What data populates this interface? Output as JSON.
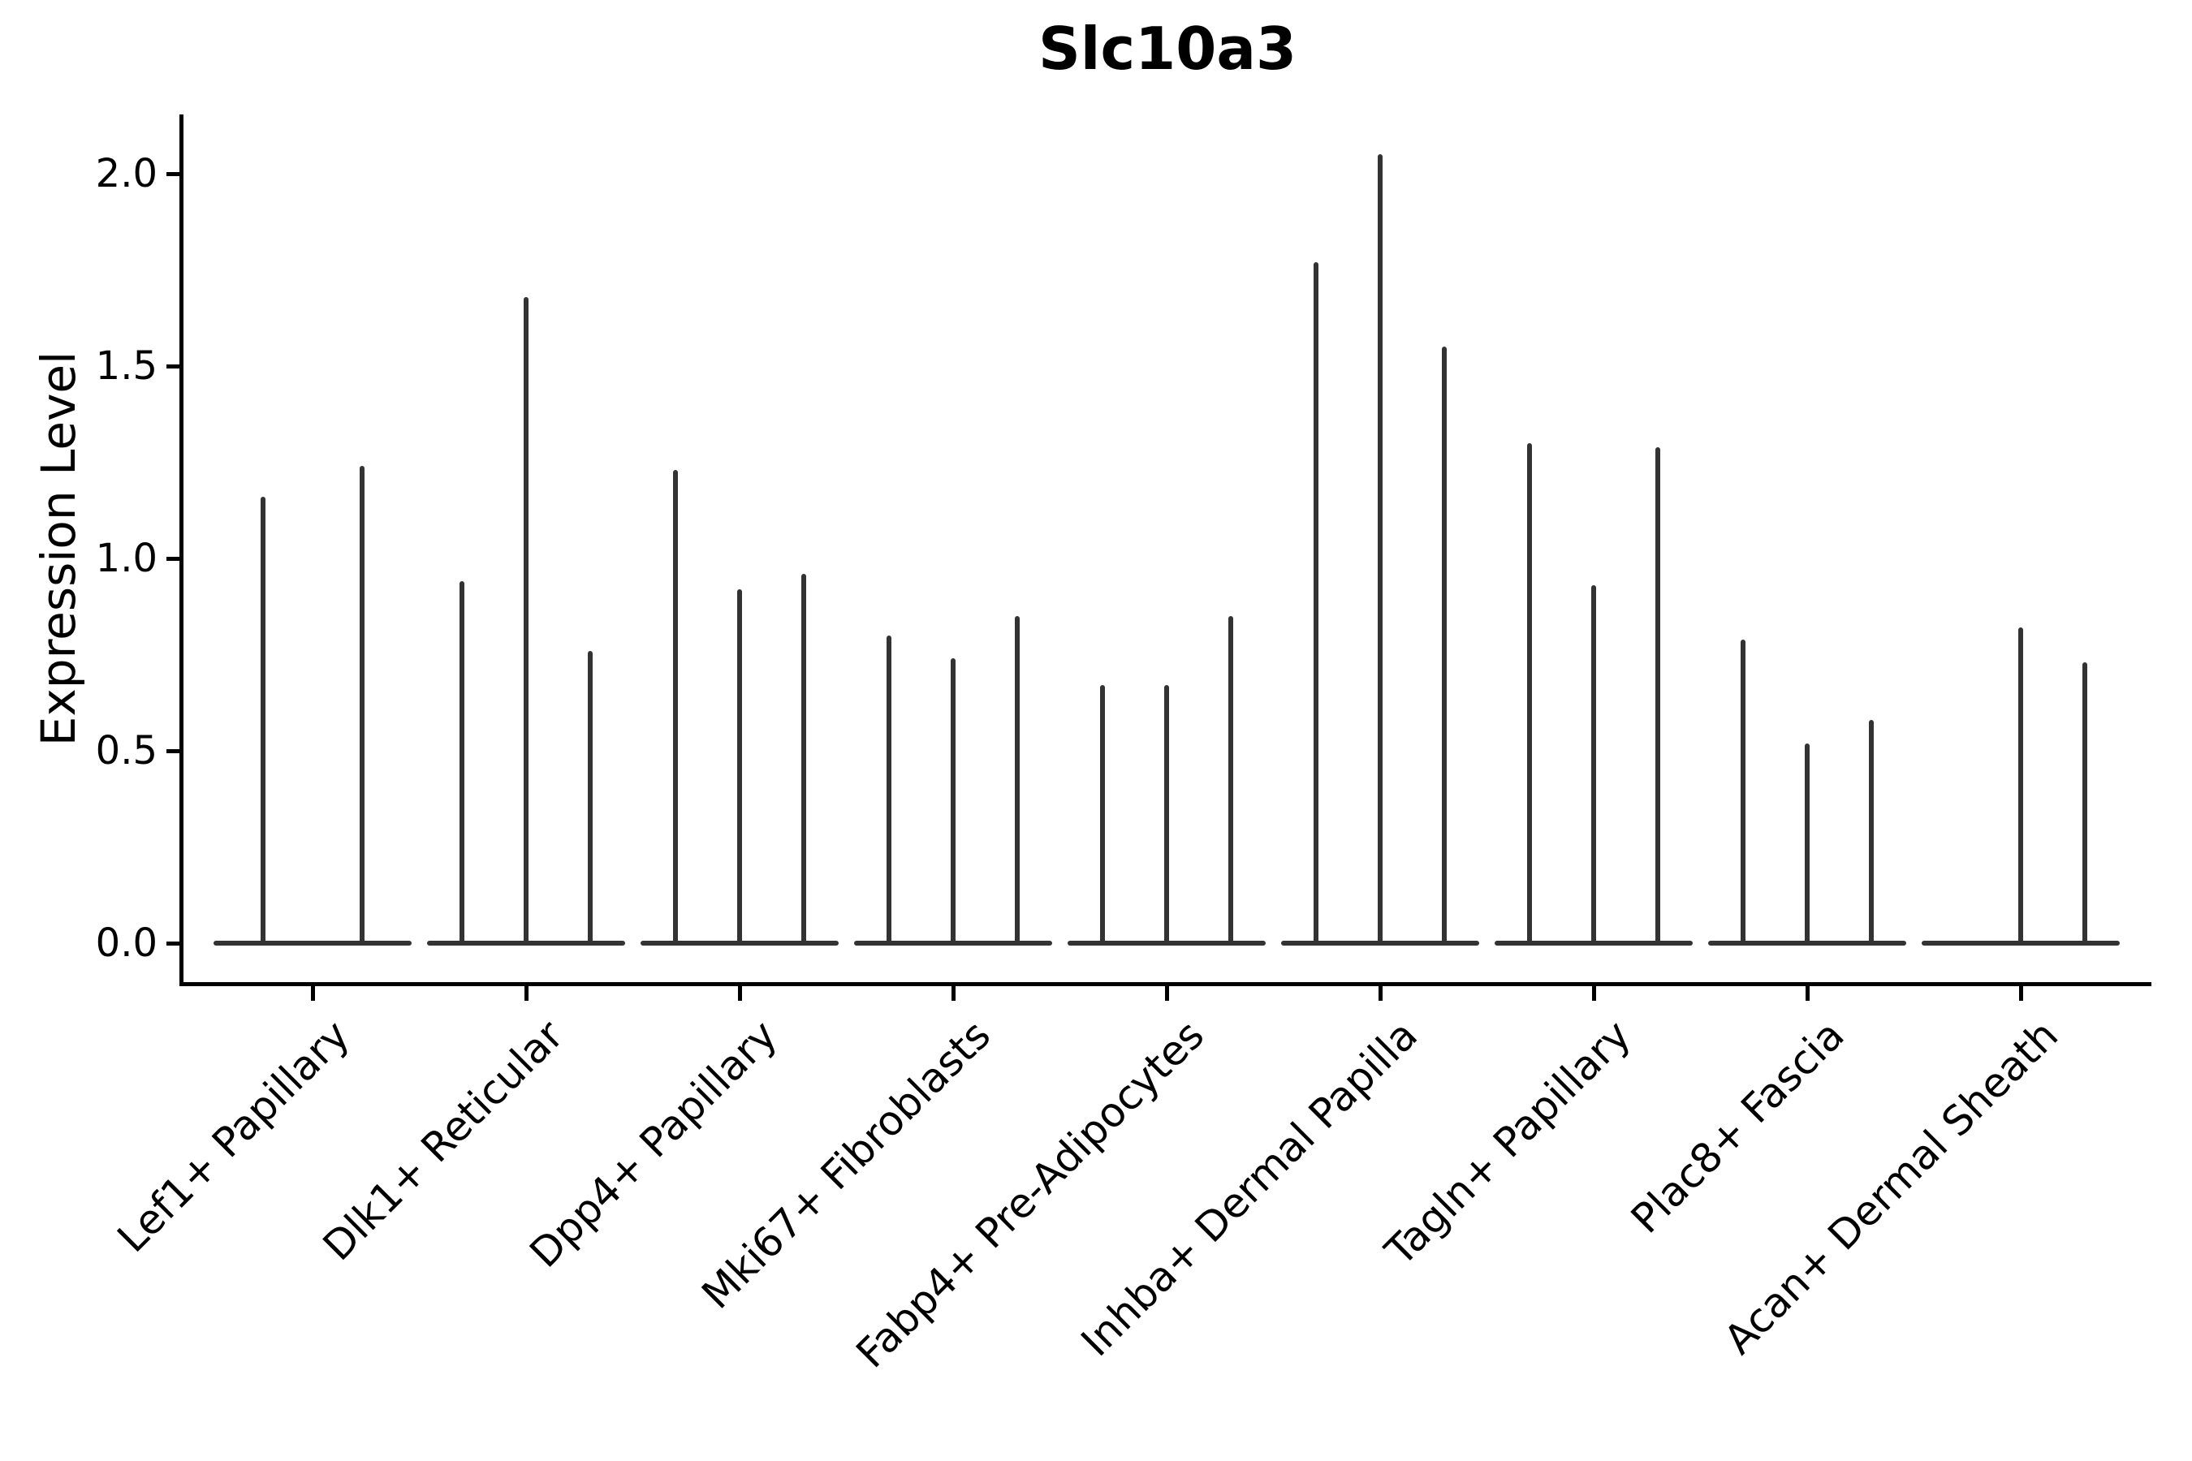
{
  "chart_data": {
    "type": "violin",
    "title": "Slc10a3",
    "xlabel": "",
    "ylabel": "Expression Level",
    "ylim": [
      -0.1,
      2.15
    ],
    "yticks": [
      0.0,
      0.5,
      1.0,
      1.5,
      2.0
    ],
    "grid": false,
    "legend": null,
    "violin_baseline_value": 0.0,
    "categories": [
      "Lef1+ Papillary",
      "Dlk1+ Reticular",
      "Dpp4+ Papillary",
      "Mki67+ Fibroblasts",
      "Fabp4+ Pre-Adipocytes",
      "Inhba+ Dermal Papilla",
      "Tagln+ Papillary",
      "Plac8+ Fascia",
      "Acan+ Dermal Sheath"
    ],
    "groups": [
      {
        "category": "Lef1+ Papillary",
        "violin_maxima": [
          1.16,
          1.24
        ]
      },
      {
        "category": "Dlk1+ Reticular",
        "violin_maxima": [
          0.94,
          1.68,
          0.76
        ]
      },
      {
        "category": "Dpp4+ Papillary",
        "violin_maxima": [
          1.23,
          0.92,
          0.96
        ]
      },
      {
        "category": "Mki67+ Fibroblasts",
        "violin_maxima": [
          0.8,
          0.74,
          0.85
        ]
      },
      {
        "category": "Fabp4+ Pre-Adipocytes",
        "violin_maxima": [
          0.67,
          0.67,
          0.85
        ]
      },
      {
        "category": "Inhba+ Dermal Papilla",
        "violin_maxima": [
          1.77,
          2.05,
          1.55
        ]
      },
      {
        "category": "Tagln+ Papillary",
        "violin_maxima": [
          1.3,
          0.93,
          1.29
        ]
      },
      {
        "category": "Plac8+ Fascia",
        "violin_maxima": [
          0.79,
          0.52,
          0.58
        ]
      },
      {
        "category": "Acan+ Dermal Sheath",
        "violin_maxima": [
          null,
          0.82,
          0.73
        ]
      }
    ],
    "colors": {
      "violin": "#333333",
      "axis": "#000000",
      "text": "#000000",
      "background": "#ffffff"
    }
  }
}
